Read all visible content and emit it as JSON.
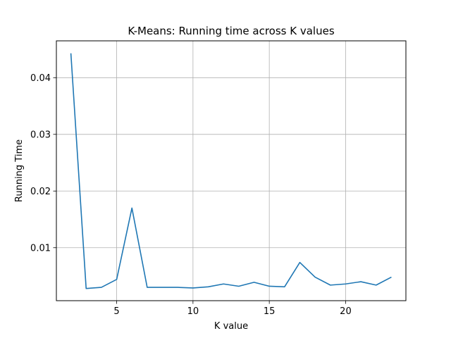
{
  "chart_data": {
    "type": "line",
    "title": "K-Means: Running time across K values",
    "xlabel": "K value",
    "ylabel": "Running Time",
    "xlim": [
      1.05,
      23.95
    ],
    "ylim": [
      0.00065,
      0.0465
    ],
    "xticks": [
      5,
      10,
      15,
      20
    ],
    "yticks": [
      0.01,
      0.02,
      0.03,
      0.04
    ],
    "xtick_labels": [
      "5",
      "10",
      "15",
      "20"
    ],
    "ytick_labels": [
      "0.01",
      "0.02",
      "0.03",
      "0.04"
    ],
    "grid": true,
    "series": [
      {
        "color": "#1f77b4",
        "x": [
          2,
          3,
          4,
          5,
          6,
          7,
          8,
          9,
          10,
          11,
          12,
          13,
          14,
          15,
          16,
          17,
          18,
          19,
          20,
          21,
          22,
          23
        ],
        "y": [
          0.0443,
          0.0028,
          0.003,
          0.0044,
          0.017,
          0.003,
          0.003,
          0.003,
          0.0029,
          0.0031,
          0.0036,
          0.0032,
          0.0039,
          0.0032,
          0.0031,
          0.0074,
          0.0048,
          0.0034,
          0.0036,
          0.004,
          0.0034,
          0.0048
        ]
      }
    ]
  }
}
